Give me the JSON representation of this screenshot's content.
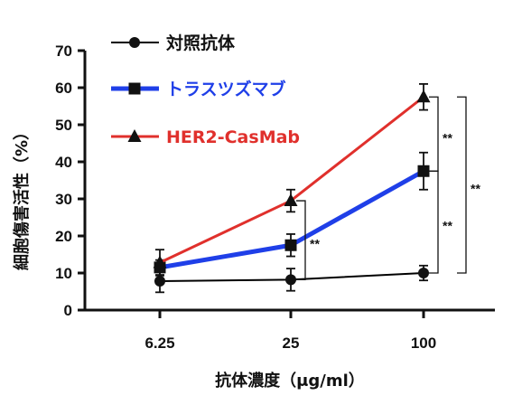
{
  "chart_data": {
    "type": "line",
    "categories": [
      "6.25",
      "25",
      "100"
    ],
    "xlabel": "抗体濃度（μg/ml）",
    "ylabel": "細胞傷害活性（%）",
    "ylim": [
      0,
      70
    ],
    "yticks": [
      "0",
      "10",
      "20",
      "30",
      "40",
      "50",
      "60",
      "70"
    ],
    "grid": false,
    "legend_position": "top-left",
    "series": [
      {
        "name": "対照抗体",
        "color": "#000000",
        "marker": "circle",
        "values": [
          7.8,
          8.2,
          10
        ],
        "errors": [
          3,
          3,
          2
        ]
      },
      {
        "name": "トラスツズマブ",
        "color": "#1f3fe8",
        "marker": "square",
        "values": [
          11.5,
          17.5,
          37.5
        ],
        "errors": [
          2,
          3,
          5
        ]
      },
      {
        "name": "HER2-CasMab",
        "color": "#e0302c",
        "marker": "triangle",
        "values": [
          12.8,
          29.5,
          57.5
        ],
        "errors": [
          3.5,
          3,
          3.5
        ]
      }
    ],
    "significance": [
      {
        "label": "**",
        "category": "25",
        "from": 8.2,
        "to": 29.5,
        "level": 1
      },
      {
        "label": "**",
        "category": "100",
        "from": 37.5,
        "to": 57.5,
        "level": 1
      },
      {
        "label": "**",
        "category": "100",
        "from": 10,
        "to": 37.5,
        "level": 1
      },
      {
        "label": "**",
        "category": "100",
        "from": 10,
        "to": 57.5,
        "level": 2
      }
    ]
  }
}
